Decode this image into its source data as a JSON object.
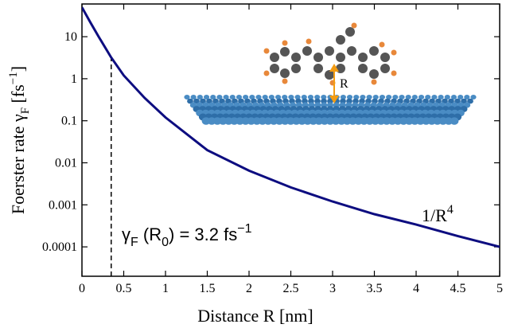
{
  "chart_data": {
    "type": "line",
    "log_y": true,
    "x": [
      0,
      0.1,
      0.2,
      0.35,
      0.5,
      0.75,
      1,
      1.5,
      2,
      2.5,
      3,
      3.5,
      4,
      4.5,
      5
    ],
    "values": [
      50,
      22,
      10,
      3.2,
      1.2,
      0.35,
      0.12,
      0.02,
      0.0065,
      0.0026,
      0.0012,
      0.0006,
      0.00034,
      0.00018,
      0.0001
    ],
    "color": "#0d0d80",
    "xlim": [
      0,
      5
    ],
    "xticks": [
      0,
      0.5,
      1,
      1.5,
      2,
      2.5,
      3,
      3.5,
      4,
      4.5,
      5
    ],
    "ylim": [
      2e-05,
      60
    ],
    "yticks": [
      0.0001,
      0.001,
      0.01,
      0.1,
      1,
      10
    ],
    "xlabel": "Distance R [nm]",
    "ylabel": [
      "Foerster rate γ",
      "F",
      " [fs",
      "−1",
      "]"
    ],
    "r0": {
      "x": 0.35,
      "value": 3.2
    },
    "r0_annotation": [
      "γ",
      "F",
      " (R",
      "0",
      ")  =  3.2 fs",
      "−1"
    ],
    "asymptote_label": [
      "1/R",
      "4"
    ],
    "inset_label": "R"
  }
}
